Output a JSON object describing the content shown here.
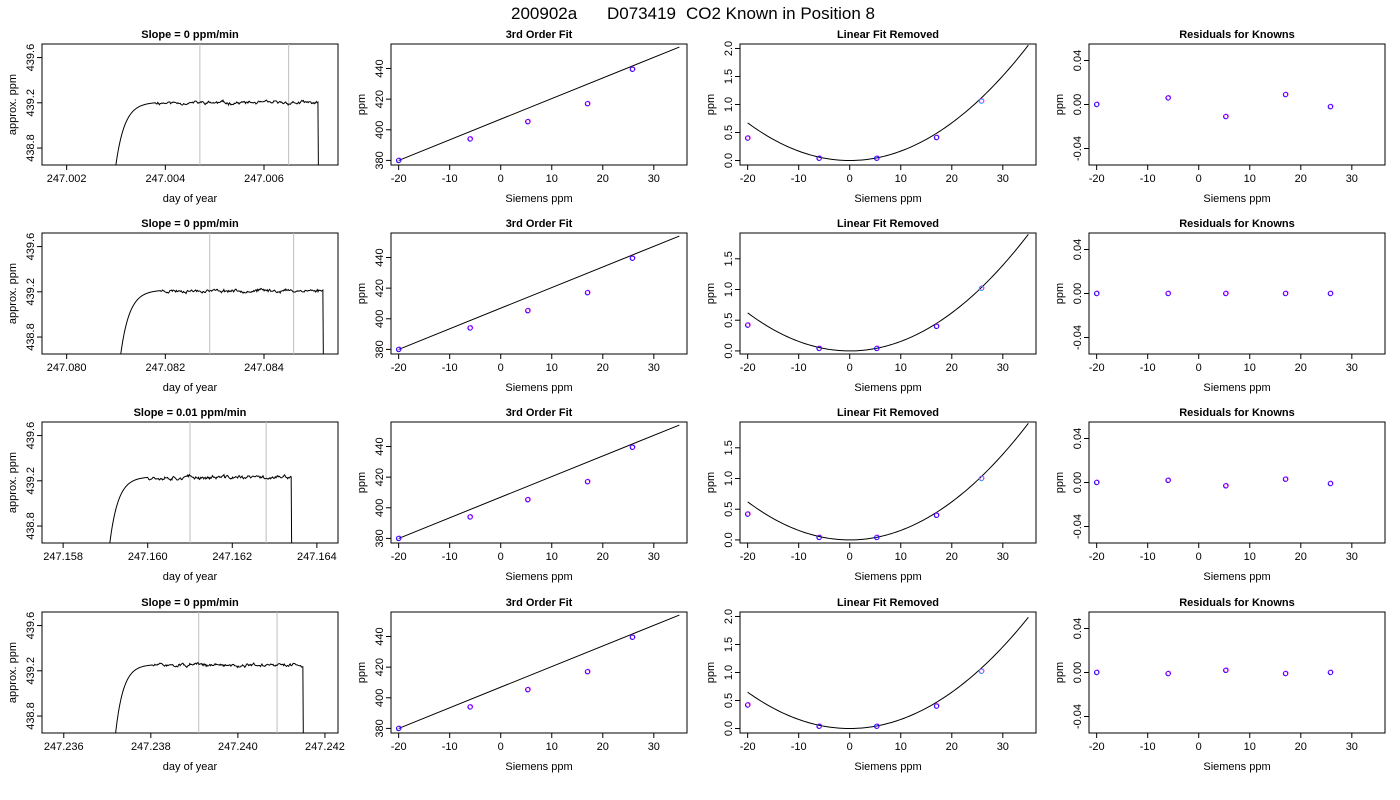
{
  "figure": {
    "title_parts": [
      "200902a",
      "D073419",
      "CO2 Known in Position  8"
    ]
  },
  "chart_data": [
    {
      "type": "line",
      "title": "Slope =  0  ppm/min",
      "xlabel": "day of year",
      "ylabel": "approx. ppm",
      "xlim": [
        247.0015,
        247.0075
      ],
      "ylim": [
        438.65,
        439.72
      ],
      "xticks": [
        247.002,
        247.004,
        247.006
      ],
      "xtick_labels": [
        "247.002",
        "247.004",
        "247.006"
      ],
      "yticks": [
        438.8,
        439.2,
        439.6
      ],
      "ytick_labels": [
        "438.8",
        "439.2",
        "439.6"
      ],
      "vlines": [
        247.0047,
        247.0065
      ],
      "trace": {
        "start": 247.0029,
        "rise_end": 247.0038,
        "level": 439.2,
        "drop": 247.0071,
        "noise": 0.01,
        "seed": 11
      }
    },
    {
      "type": "scatter",
      "title": "3rd Order Fit",
      "xlabel": "Siemens ppm",
      "ylabel": "ppm",
      "xlim": [
        -21.5,
        36.5
      ],
      "ylim": [
        377,
        456
      ],
      "xticks": [
        -20,
        -10,
        0,
        10,
        20,
        30
      ],
      "xtick_labels": [
        "-20",
        "-10",
        "0",
        "10",
        "20",
        "30"
      ],
      "yticks": [
        380,
        400,
        420,
        440
      ],
      "ytick_labels": [
        "380",
        "400",
        "420",
        "440"
      ],
      "x": [
        -20,
        -6,
        5.3,
        17,
        25.8
      ],
      "y": [
        380,
        394,
        405.3,
        417,
        439.5
      ],
      "line": {
        "x": [
          -20,
          35
        ],
        "y": [
          380,
          454
        ]
      }
    },
    {
      "type": "scatter",
      "title": "Linear Fit Removed",
      "xlabel": "Siemens ppm",
      "ylabel": "ppm",
      "xlim": [
        -21.5,
        36.5
      ],
      "ylim": [
        -0.08,
        2.08
      ],
      "xticks": [
        -20,
        -10,
        0,
        10,
        20,
        30
      ],
      "xtick_labels": [
        "-20",
        "-10",
        "0",
        "10",
        "20",
        "30"
      ],
      "yticks": [
        0,
        0.5,
        1,
        1.5,
        2
      ],
      "ytick_labels": [
        "0.0",
        "0.5",
        "1.0",
        "1.5",
        "2.0"
      ],
      "x": [
        -20,
        -6,
        5.3,
        17,
        25.8
      ],
      "y": [
        0.4,
        0.04,
        0.04,
        0.41,
        1.06
      ],
      "curve": {
        "a": 0.00168,
        "b": 0,
        "c": 0
      },
      "highlight_index": 4
    },
    {
      "type": "scatter",
      "title": "Residuals for Knowns",
      "xlabel": "Siemens ppm",
      "ylabel": "ppm",
      "xlim": [
        -21.5,
        36.5
      ],
      "ylim": [
        -0.055,
        0.055
      ],
      "xticks": [
        -20,
        -10,
        0,
        10,
        20,
        30
      ],
      "xtick_labels": [
        "-20",
        "-10",
        "0",
        "10",
        "20",
        "30"
      ],
      "yticks": [
        -0.04,
        0,
        0.04
      ],
      "ytick_labels": [
        "-0.04",
        "0.00",
        "0.04"
      ],
      "x": [
        -20,
        -6,
        5.3,
        17,
        25.8
      ],
      "y": [
        0.0,
        0.006,
        -0.011,
        0.009,
        -0.002
      ]
    },
    {
      "type": "line",
      "title": "Slope =  0  ppm/min",
      "xlabel": "day of year",
      "ylabel": "approx. ppm",
      "xlim": [
        247.0795,
        247.0855
      ],
      "ylim": [
        438.65,
        439.72
      ],
      "xticks": [
        247.08,
        247.082,
        247.084
      ],
      "xtick_labels": [
        "247.080",
        "247.082",
        "247.084"
      ],
      "yticks": [
        438.8,
        439.2,
        439.6
      ],
      "ytick_labels": [
        "438.8",
        "439.2",
        "439.6"
      ],
      "vlines": [
        247.0829,
        247.0846
      ],
      "trace": {
        "start": 247.081,
        "rise_end": 247.0819,
        "level": 439.21,
        "drop": 247.0852,
        "noise": 0.01,
        "seed": 23
      }
    },
    {
      "type": "scatter",
      "title": "3rd Order Fit",
      "xlabel": "Siemens ppm",
      "ylabel": "ppm",
      "xlim": [
        -21.5,
        36.5
      ],
      "ylim": [
        377,
        456
      ],
      "xticks": [
        -20,
        -10,
        0,
        10,
        20,
        30
      ],
      "xtick_labels": [
        "-20",
        "-10",
        "0",
        "10",
        "20",
        "30"
      ],
      "yticks": [
        380,
        400,
        420,
        440
      ],
      "ytick_labels": [
        "380",
        "400",
        "420",
        "440"
      ],
      "x": [
        -20,
        -6,
        5.3,
        17,
        25.8
      ],
      "y": [
        380,
        394,
        405.3,
        417,
        439.5
      ],
      "line": {
        "x": [
          -20,
          35
        ],
        "y": [
          380,
          454
        ]
      }
    },
    {
      "type": "scatter",
      "title": "Linear Fit Removed",
      "xlabel": "Siemens ppm",
      "ylabel": "ppm",
      "xlim": [
        -21.5,
        36.5
      ],
      "ylim": [
        -0.05,
        1.92
      ],
      "xticks": [
        -20,
        -10,
        0,
        10,
        20,
        30
      ],
      "xtick_labels": [
        "-20",
        "-10",
        "0",
        "10",
        "20",
        "30"
      ],
      "yticks": [
        0,
        0.5,
        1,
        1.5
      ],
      "ytick_labels": [
        "0.0",
        "0.5",
        "1.0",
        "1.5"
      ],
      "x": [
        -20,
        -6,
        5.3,
        17,
        25.8
      ],
      "y": [
        0.42,
        0.04,
        0.04,
        0.4,
        1.02
      ],
      "curve": {
        "a": 0.00155,
        "b": 0,
        "c": 0
      },
      "highlight_index": 4
    },
    {
      "type": "scatter",
      "title": "Residuals for Knowns",
      "xlabel": "Siemens ppm",
      "ylabel": "ppm",
      "xlim": [
        -21.5,
        36.5
      ],
      "ylim": [
        -0.055,
        0.055
      ],
      "xticks": [
        -20,
        -10,
        0,
        10,
        20,
        30
      ],
      "xtick_labels": [
        "-20",
        "-10",
        "0",
        "10",
        "20",
        "30"
      ],
      "yticks": [
        -0.04,
        0,
        0.04
      ],
      "ytick_labels": [
        "-0.04",
        "0.00",
        "0.04"
      ],
      "x": [
        -20,
        -6,
        5.3,
        17,
        25.8
      ],
      "y": [
        0.0,
        0.0,
        0.0,
        0.0,
        0.0
      ]
    },
    {
      "type": "line",
      "title": "Slope =  0.01  ppm/min",
      "xlabel": "day of year",
      "ylabel": "approx. ppm",
      "xlim": [
        247.1575,
        247.1645
      ],
      "ylim": [
        438.65,
        439.72
      ],
      "xticks": [
        247.158,
        247.16,
        247.162,
        247.164
      ],
      "xtick_labels": [
        "247.158",
        "247.160",
        "247.162",
        "247.164"
      ],
      "yticks": [
        438.8,
        439.2,
        439.6
      ],
      "ytick_labels": [
        "438.8",
        "439.2",
        "439.6"
      ],
      "vlines": [
        247.161,
        247.1628
      ],
      "trace": {
        "start": 247.159,
        "rise_end": 247.16,
        "level": 439.23,
        "drop": 247.1634,
        "noise": 0.012,
        "seed": 37
      }
    },
    {
      "type": "scatter",
      "title": "3rd Order Fit",
      "xlabel": "Siemens ppm",
      "ylabel": "ppm",
      "xlim": [
        -21.5,
        36.5
      ],
      "ylim": [
        377,
        456
      ],
      "xticks": [
        -20,
        -10,
        0,
        10,
        20,
        30
      ],
      "xtick_labels": [
        "-20",
        "-10",
        "0",
        "10",
        "20",
        "30"
      ],
      "yticks": [
        380,
        400,
        420,
        440
      ],
      "ytick_labels": [
        "380",
        "400",
        "420",
        "440"
      ],
      "x": [
        -20,
        -6,
        5.3,
        17,
        25.8
      ],
      "y": [
        380,
        394,
        405.3,
        417,
        439.5
      ],
      "line": {
        "x": [
          -20,
          35
        ],
        "y": [
          380,
          454
        ]
      }
    },
    {
      "type": "scatter",
      "title": "Linear Fit Removed",
      "xlabel": "Siemens ppm",
      "ylabel": "ppm",
      "xlim": [
        -21.5,
        36.5
      ],
      "ylim": [
        -0.05,
        1.92
      ],
      "xticks": [
        -20,
        -10,
        0,
        10,
        20,
        30
      ],
      "xtick_labels": [
        "-20",
        "-10",
        "0",
        "10",
        "20",
        "30"
      ],
      "yticks": [
        0,
        0.5,
        1,
        1.5
      ],
      "ytick_labels": [
        "0.0",
        "0.5",
        "1.0",
        "1.5"
      ],
      "x": [
        -20,
        -6,
        5.3,
        17,
        25.8
      ],
      "y": [
        0.42,
        0.04,
        0.04,
        0.4,
        1.0
      ],
      "curve": {
        "a": 0.00155,
        "b": 0,
        "c": 0
      },
      "highlight_index": 4
    },
    {
      "type": "scatter",
      "title": "Residuals for Knowns",
      "xlabel": "Siemens ppm",
      "ylabel": "ppm",
      "xlim": [
        -21.5,
        36.5
      ],
      "ylim": [
        -0.055,
        0.055
      ],
      "xticks": [
        -20,
        -10,
        0,
        10,
        20,
        30
      ],
      "xtick_labels": [
        "-20",
        "-10",
        "0",
        "10",
        "20",
        "30"
      ],
      "yticks": [
        -0.04,
        0,
        0.04
      ],
      "ytick_labels": [
        "-0.04",
        "0.00",
        "0.04"
      ],
      "x": [
        -20,
        -6,
        5.3,
        17,
        25.8
      ],
      "y": [
        0.0,
        0.002,
        -0.003,
        0.003,
        -0.001
      ]
    },
    {
      "type": "line",
      "title": "Slope =  0  ppm/min",
      "xlabel": "day of year",
      "ylabel": "approx. ppm",
      "xlim": [
        247.2355,
        247.2423
      ],
      "ylim": [
        438.65,
        439.72
      ],
      "xticks": [
        247.236,
        247.238,
        247.24,
        247.242
      ],
      "xtick_labels": [
        "247.236",
        "247.238",
        "247.240",
        "247.242"
      ],
      "yticks": [
        438.8,
        439.2,
        439.6
      ],
      "ytick_labels": [
        "438.8",
        "439.2",
        "439.6"
      ],
      "vlines": [
        247.2391,
        247.2409
      ],
      "trace": {
        "start": 247.2371,
        "rise_end": 247.238,
        "level": 439.25,
        "drop": 247.2415,
        "noise": 0.01,
        "seed": 51
      }
    },
    {
      "type": "scatter",
      "title": "3rd Order Fit",
      "xlabel": "Siemens ppm",
      "ylabel": "ppm",
      "xlim": [
        -21.5,
        36.5
      ],
      "ylim": [
        377,
        456
      ],
      "xticks": [
        -20,
        -10,
        0,
        10,
        20,
        30
      ],
      "xtick_labels": [
        "-20",
        "-10",
        "0",
        "10",
        "20",
        "30"
      ],
      "yticks": [
        380,
        400,
        420,
        440
      ],
      "ytick_labels": [
        "380",
        "400",
        "420",
        "440"
      ],
      "x": [
        -20,
        -6,
        5.3,
        17,
        25.8
      ],
      "y": [
        380,
        394,
        405.3,
        417,
        439.5
      ],
      "line": {
        "x": [
          -20,
          35
        ],
        "y": [
          380,
          454
        ]
      }
    },
    {
      "type": "scatter",
      "title": "Linear Fit Removed",
      "xlabel": "Siemens ppm",
      "ylabel": "ppm",
      "xlim": [
        -21.5,
        36.5
      ],
      "ylim": [
        -0.08,
        2.08
      ],
      "xticks": [
        -20,
        -10,
        0,
        10,
        20,
        30
      ],
      "xtick_labels": [
        "-20",
        "-10",
        "0",
        "10",
        "20",
        "30"
      ],
      "yticks": [
        0,
        0.5,
        1,
        1.5,
        2
      ],
      "ytick_labels": [
        "0.0",
        "0.5",
        "1.0",
        "1.5",
        "2.0"
      ],
      "x": [
        -20,
        -6,
        5.3,
        17,
        25.8
      ],
      "y": [
        0.42,
        0.04,
        0.04,
        0.4,
        1.02
      ],
      "curve": {
        "a": 0.00162,
        "b": 0,
        "c": 0
      },
      "highlight_index": 4
    },
    {
      "type": "scatter",
      "title": "Residuals for Knowns",
      "xlabel": "Siemens ppm",
      "ylabel": "ppm",
      "xlim": [
        -21.5,
        36.5
      ],
      "ylim": [
        -0.055,
        0.055
      ],
      "xticks": [
        -20,
        -10,
        0,
        10,
        20,
        30
      ],
      "xtick_labels": [
        "-20",
        "-10",
        "0",
        "10",
        "20",
        "30"
      ],
      "yticks": [
        -0.04,
        0,
        0.04
      ],
      "ytick_labels": [
        "-0.04",
        "0.00",
        "0.04"
      ],
      "x": [
        -20,
        -6,
        5.3,
        17,
        25.8
      ],
      "y": [
        0.0,
        -0.001,
        0.002,
        -0.001,
        0.0
      ]
    }
  ],
  "colors": {
    "axis": "#000000",
    "vline": "#bebebe",
    "point": "#0000ff",
    "point_alt": "#ff00ff",
    "highlight": "#00bfff",
    "fit_line": "#000000"
  }
}
